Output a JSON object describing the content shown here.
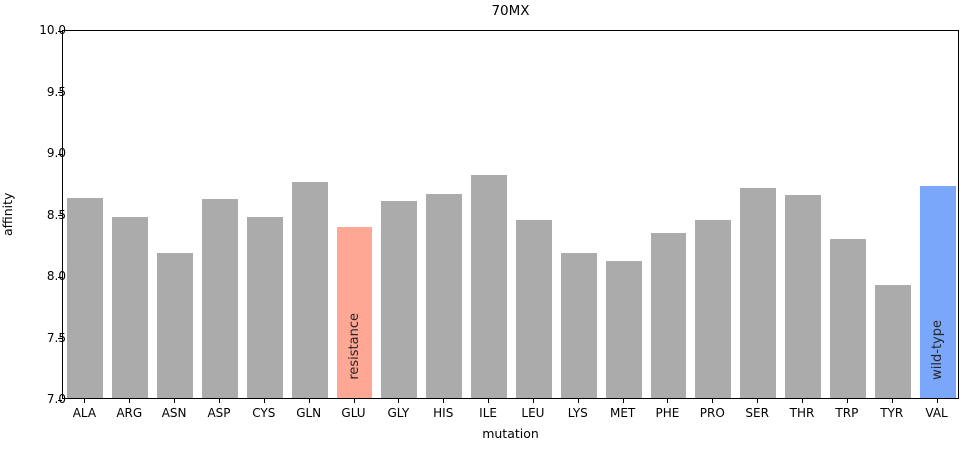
{
  "chart_data": {
    "type": "bar",
    "title": "70MX",
    "xlabel": "mutation",
    "ylabel": "affinity",
    "ylim": [
      7.0,
      10.0
    ],
    "ytick_values": [
      7.0,
      7.5,
      8.0,
      8.5,
      9.0,
      9.5,
      10.0
    ],
    "ytick_labels": [
      "7.0",
      "7.5",
      "8.0",
      "8.5",
      "9.0",
      "9.5",
      "10.0"
    ],
    "grid": false,
    "legend": "none",
    "categories": [
      "ALA",
      "ARG",
      "ASN",
      "ASP",
      "CYS",
      "GLN",
      "GLU",
      "GLY",
      "HIS",
      "ILE",
      "LEU",
      "LYS",
      "MET",
      "PHE",
      "PRO",
      "SER",
      "THR",
      "TRP",
      "TYR",
      "VAL"
    ],
    "values": [
      8.63,
      8.47,
      8.18,
      8.62,
      8.47,
      8.76,
      8.39,
      8.6,
      8.66,
      8.81,
      8.45,
      8.18,
      8.11,
      8.34,
      8.45,
      8.71,
      8.65,
      8.29,
      7.92,
      8.72
    ],
    "colors": {
      "bar_default": "#ababab",
      "bar_resistance": "#ffa795",
      "bar_wildtype": "#7ba7fb"
    },
    "annotations": [
      {
        "category": "GLU",
        "label": "resistance",
        "color_key": "bar_resistance"
      },
      {
        "category": "VAL",
        "label": "wild-type",
        "color_key": "bar_wildtype"
      }
    ]
  }
}
